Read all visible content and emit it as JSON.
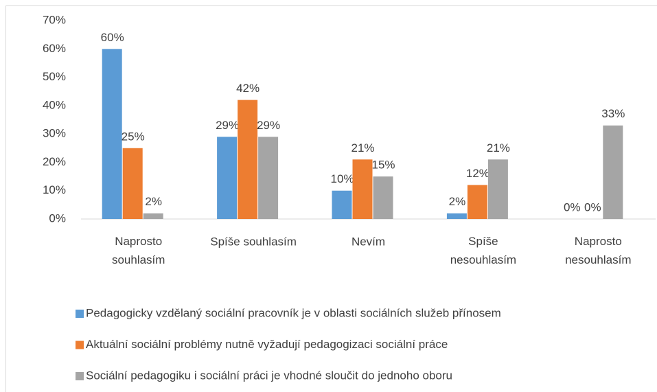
{
  "chart_data": {
    "type": "bar",
    "categories": [
      "Naprosto souhlasím",
      "Spíše souhlasím",
      "Nevím",
      "Spíše nesouhlasím",
      "Naprosto nesouhlasím"
    ],
    "series": [
      {
        "name": "Pedagogicky vzdělaný sociální pracovník je v oblasti sociálních služeb přínosem",
        "color": "#5b9bd5",
        "values": [
          60,
          29,
          10,
          2,
          0
        ],
        "value_labels": [
          "60%",
          "29%",
          "10%",
          "2%",
          "0%"
        ]
      },
      {
        "name": "Aktuální sociální problémy nutně vyžadují pedagogizaci sociální práce",
        "color": "#ed7d31",
        "values": [
          25,
          42,
          21,
          12,
          0
        ],
        "value_labels": [
          "25%",
          "42%",
          "21%",
          "12%",
          "0%"
        ]
      },
      {
        "name": "Sociální pedagogiku i sociální práci je vhodné sloučit do jednoho oboru",
        "color": "#a5a5a5",
        "values": [
          2,
          29,
          15,
          21,
          33
        ],
        "value_labels": [
          "2%",
          "29%",
          "15%",
          "21%",
          "33%"
        ]
      }
    ],
    "ylim": [
      0,
      70
    ],
    "yticks": [
      {
        "value": 0,
        "label": "0%"
      },
      {
        "value": 10,
        "label": "10%"
      },
      {
        "value": 20,
        "label": "20%"
      },
      {
        "value": 30,
        "label": "30%"
      },
      {
        "value": 40,
        "label": "40%"
      },
      {
        "value": 50,
        "label": "50%"
      },
      {
        "value": 60,
        "label": "60%"
      },
      {
        "value": 70,
        "label": "70%"
      }
    ],
    "grid": false,
    "legend": "bottom"
  }
}
